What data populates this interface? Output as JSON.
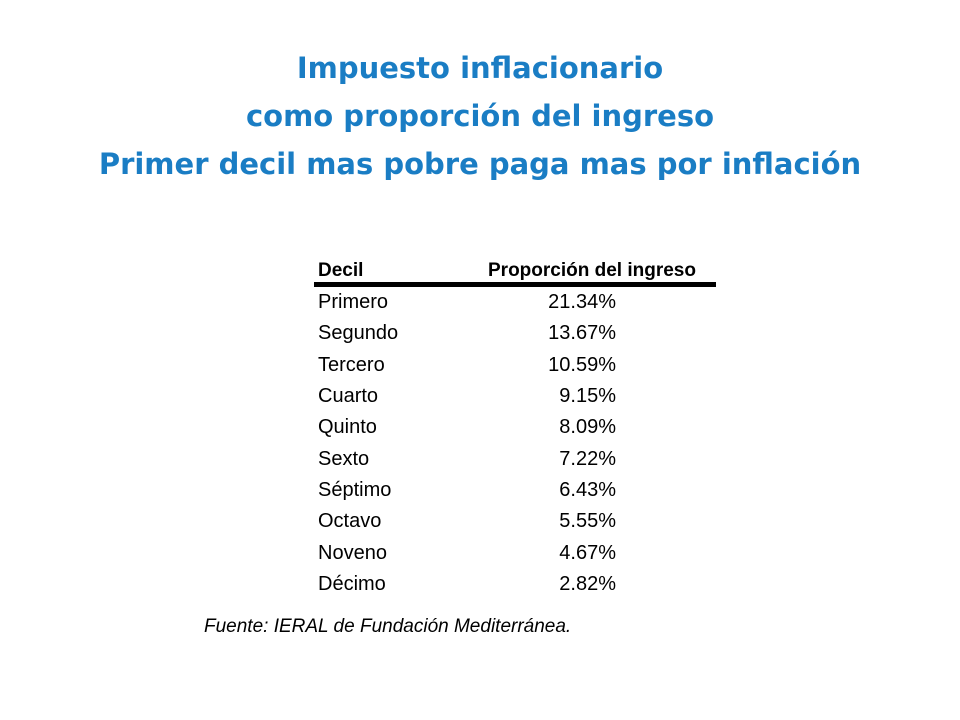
{
  "title": {
    "line1": "Impuesto inflacionario",
    "line2": "como proporción del ingreso",
    "line3": "Primer decil mas pobre paga mas por inflación"
  },
  "table": {
    "headers": {
      "decil": "Decil",
      "proporcion": "Proporción del ingreso"
    },
    "rows": [
      {
        "decil": "Primero",
        "valor": "21.34%"
      },
      {
        "decil": "Segundo",
        "valor": "13.67%"
      },
      {
        "decil": "Tercero",
        "valor": "10.59%"
      },
      {
        "decil": "Cuarto",
        "valor": "9.15%"
      },
      {
        "decil": "Quinto",
        "valor": "8.09%"
      },
      {
        "decil": "Sexto",
        "valor": "7.22%"
      },
      {
        "decil": "Séptimo",
        "valor": "6.43%"
      },
      {
        "decil": "Octavo",
        "valor": "5.55%"
      },
      {
        "decil": "Noveno",
        "valor": "4.67%"
      },
      {
        "decil": "Décimo",
        "valor": "2.82%"
      }
    ]
  },
  "source": "Fuente: IERAL de Fundación Mediterránea.",
  "colors": {
    "title": "#1a7dc4",
    "text": "#000000",
    "background": "#ffffff"
  }
}
